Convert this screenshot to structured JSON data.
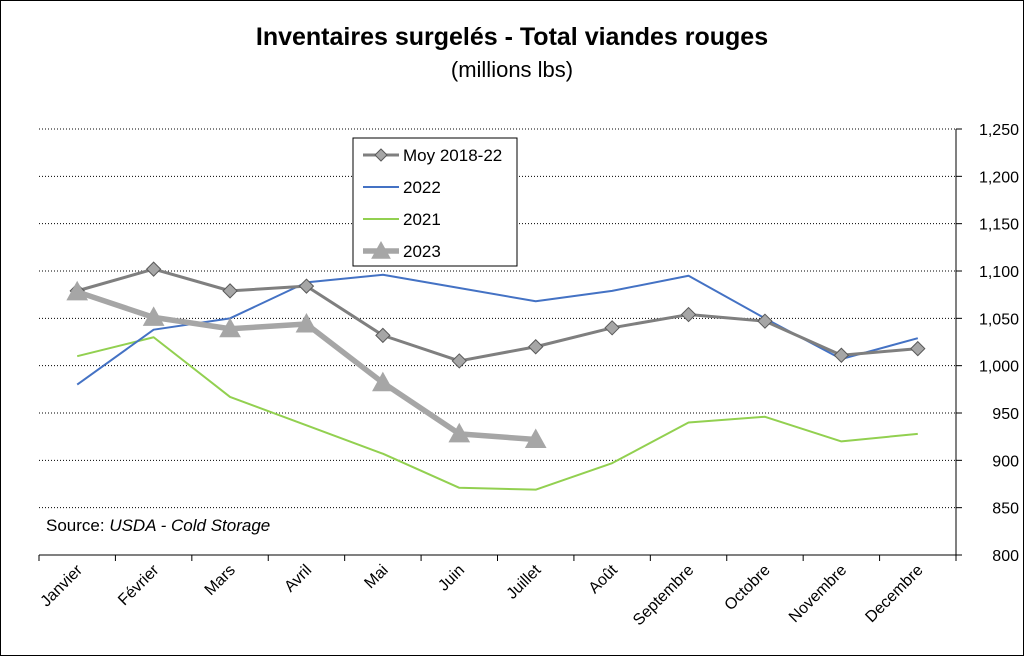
{
  "chart_data": {
    "type": "line",
    "title": "Inventaires surgelés - Total viandes rouges",
    "subtitle": "(millions lbs)",
    "categories": [
      "Janvier",
      "Février",
      "Mars",
      "Avril",
      "Mai",
      "Juin",
      "Juillet",
      "Août",
      "Septembre",
      "Octobre",
      "Novembre",
      "Decembre"
    ],
    "series": [
      {
        "name": "Moy 2018-22",
        "color": "#7f7f7f",
        "marker": "diamond",
        "values": [
          1079,
          1102,
          1079,
          1084,
          1032,
          1005,
          1020,
          1040,
          1054,
          1047,
          1011,
          1018
        ]
      },
      {
        "name": "2022",
        "color": "#4472c4",
        "marker": "none",
        "values": [
          980,
          1038,
          1050,
          1088,
          1096,
          1082,
          1068,
          1079,
          1095,
          1050,
          1007,
          1029
        ]
      },
      {
        "name": "2021",
        "color": "#92d050",
        "marker": "none",
        "values": [
          1010,
          1030,
          967,
          937,
          907,
          871,
          869,
          897,
          940,
          946,
          920,
          928
        ]
      },
      {
        "name": "2023",
        "color": "#a6a6a6",
        "marker": "triangle",
        "values": [
          1078,
          1051,
          1039,
          1044,
          982,
          928,
          922,
          null,
          null,
          null,
          null,
          null
        ]
      }
    ],
    "y_axis": {
      "position": "right",
      "ylim": [
        800,
        1250
      ],
      "ticks": [
        800,
        850,
        900,
        950,
        1000,
        1050,
        1100,
        1150,
        1200,
        1250
      ],
      "tick_labels": [
        "800",
        "850",
        "900",
        "950",
        "1,000",
        "1,050",
        "1,100",
        "1,150",
        "1,200",
        "1,250"
      ]
    },
    "grid": "horizontal-dotted",
    "legend": {
      "placement": "top-left",
      "entries": [
        "Moy 2018-22",
        "2022",
        "2021",
        "2023"
      ]
    },
    "annotation": {
      "prefix": "Source: ",
      "italic_text": "USDA - Cold Storage"
    }
  }
}
